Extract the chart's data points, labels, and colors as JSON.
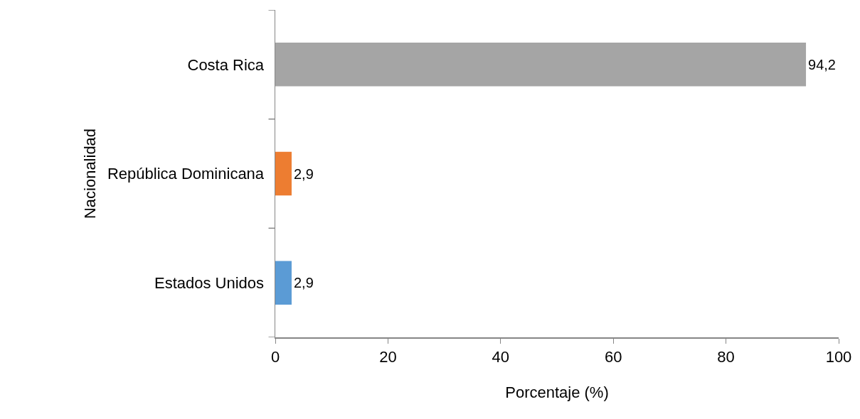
{
  "chart_data": {
    "type": "bar",
    "orientation": "horizontal",
    "categories": [
      "Costa Rica",
      "República Dominicana",
      "Estados Unidos"
    ],
    "values": [
      94.2,
      2.9,
      2.9
    ],
    "colors": [
      "#a5a5a5",
      "#ed7d31",
      "#5b9bd5"
    ],
    "value_labels": [
      "94,2",
      "2,9",
      "2,9"
    ],
    "xlim": [
      0,
      100
    ],
    "xticks": [
      0,
      20,
      40,
      60,
      80,
      100
    ],
    "xlabel": "Porcentaje (%)",
    "ylabel": "Nacionalidad"
  }
}
